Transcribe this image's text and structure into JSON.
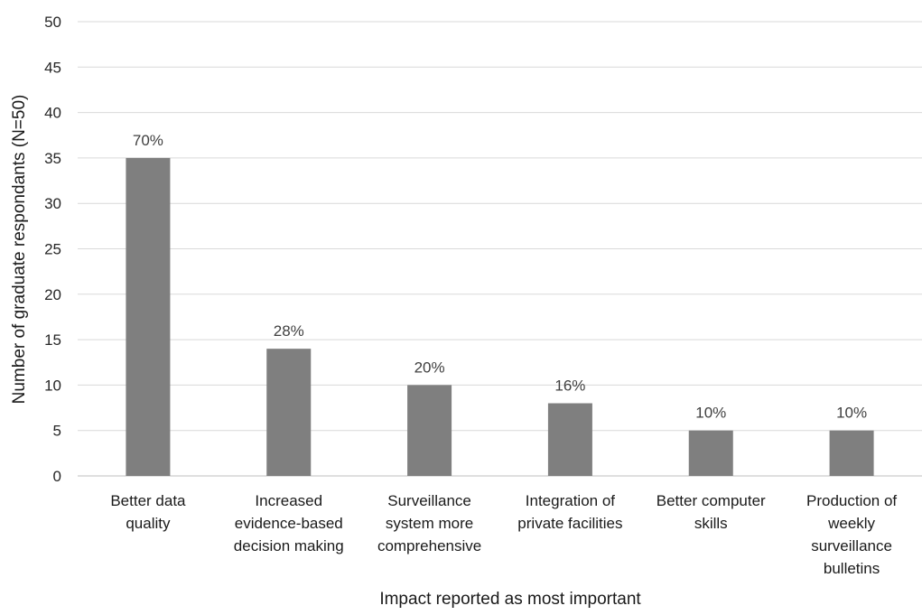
{
  "chart_data": {
    "type": "bar",
    "categories": [
      [
        "Better data",
        "quality"
      ],
      [
        "Increased",
        "evidence-based",
        "decision making"
      ],
      [
        "Surveillance",
        "system more",
        "comprehensive"
      ],
      [
        "Integration of",
        "private facilities"
      ],
      [
        "Better computer",
        "skills"
      ],
      [
        "Production of",
        "weekly",
        "surveillance",
        "bulletins"
      ]
    ],
    "values": [
      35,
      14,
      10,
      8,
      5,
      5
    ],
    "data_labels": [
      "70%",
      "28%",
      "20%",
      "16%",
      "10%",
      "10%"
    ],
    "title": "",
    "xlabel": "Impact reported as most important",
    "ylabel": "Number of graduate respondants (N=50)",
    "ylim": [
      0,
      50
    ],
    "yticks": [
      0,
      5,
      10,
      15,
      20,
      25,
      30,
      35,
      40,
      45,
      50
    ],
    "grid": true,
    "colors": {
      "bar": "#7f7f7f",
      "grid": "#d9d9d9",
      "axis": "#bfbfbf"
    }
  }
}
